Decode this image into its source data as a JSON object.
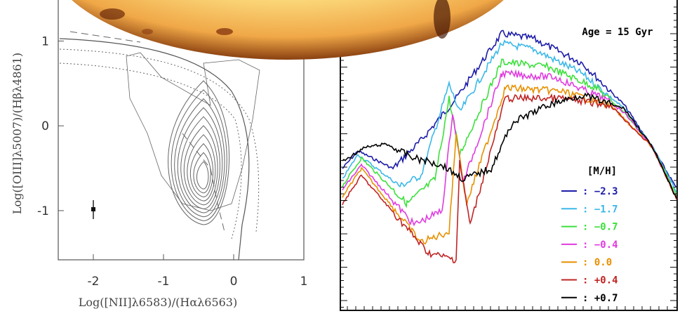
{
  "bpt_panel": {
    "x_label": "Log([NII]λ6583)/(Hαλ6563)",
    "y_label": "Log([OIII]λ5007)/(Hβλ4861)",
    "xlim": [
      -2.5,
      1
    ],
    "ylim": [
      -1.58,
      1.5
    ],
    "xticks": [
      -2,
      -1,
      0,
      1
    ],
    "yticks": [
      1,
      0,
      -1
    ]
  },
  "spectra_panel": {
    "annotation": "Age = 15 Gyr",
    "legend_title": "[M/H]",
    "legend": [
      {
        "label": ": −2.3",
        "color": "#1c1ca8"
      },
      {
        "label": ": −1.7",
        "color": "#3cb8e8"
      },
      {
        "label": ": −0.7",
        "color": "#3ce03c"
      },
      {
        "label": ": −0.4",
        "color": "#e03ce0"
      },
      {
        "label": ": 0.0",
        "color": "#e89000"
      },
      {
        "label": ": +0.4",
        "color": "#c02424"
      },
      {
        "label": ": +0.7",
        "color": "#000000"
      }
    ]
  }
}
